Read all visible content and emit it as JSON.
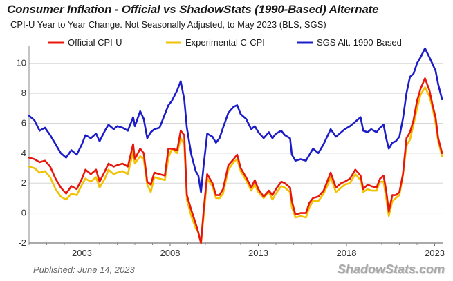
{
  "chart_data": {
    "type": "line",
    "title": "Consumer Inflation - Official vs ShadowStats (1990-Based) Alternate",
    "subtitle": "CPI-U Year to Year Change. Not Seasonally Adjusted, to May 2023  (BLS, SGS)",
    "xlabel": "",
    "ylabel": "",
    "xlim": [
      2000.0,
      2023.45
    ],
    "ylim": [
      -2,
      11
    ],
    "x_ticks": [
      2003,
      2008,
      2013,
      2018,
      2023
    ],
    "x_tick_labels": [
      "2003",
      "2008",
      "2013",
      "2018",
      "2023"
    ],
    "y_ticks": [
      -2,
      0,
      2,
      4,
      6,
      8,
      10
    ],
    "y_tick_labels": [
      "-2",
      "0",
      "2",
      "4",
      "6",
      "8",
      "10"
    ],
    "grid": true,
    "legend_placement": "top",
    "series": [
      {
        "name": "SGS  Alt. 1990-Based",
        "color": "#1c1cc8",
        "points": [
          [
            2000.0,
            6.5
          ],
          [
            2000.3,
            6.2
          ],
          [
            2000.6,
            5.5
          ],
          [
            2000.9,
            5.7
          ],
          [
            2001.2,
            5.2
          ],
          [
            2001.5,
            4.6
          ],
          [
            2001.8,
            4.0
          ],
          [
            2002.1,
            3.7
          ],
          [
            2002.4,
            4.2
          ],
          [
            2002.7,
            3.9
          ],
          [
            2003.0,
            4.6
          ],
          [
            2003.2,
            5.2
          ],
          [
            2003.5,
            5.0
          ],
          [
            2003.8,
            5.3
          ],
          [
            2004.0,
            4.8
          ],
          [
            2004.3,
            5.5
          ],
          [
            2004.5,
            5.9
          ],
          [
            2004.8,
            5.6
          ],
          [
            2005.0,
            5.8
          ],
          [
            2005.3,
            5.7
          ],
          [
            2005.6,
            5.5
          ],
          [
            2005.9,
            6.4
          ],
          [
            2006.0,
            5.8
          ],
          [
            2006.3,
            6.8
          ],
          [
            2006.5,
            6.3
          ],
          [
            2006.7,
            5.0
          ],
          [
            2006.9,
            5.4
          ],
          [
            2007.1,
            5.6
          ],
          [
            2007.4,
            5.7
          ],
          [
            2007.7,
            6.6
          ],
          [
            2007.9,
            7.2
          ],
          [
            2008.1,
            7.5
          ],
          [
            2008.4,
            8.2
          ],
          [
            2008.6,
            8.8
          ],
          [
            2008.8,
            7.6
          ],
          [
            2008.95,
            5.7
          ],
          [
            2009.2,
            3.9
          ],
          [
            2009.45,
            2.8
          ],
          [
            2009.6,
            2.5
          ],
          [
            2009.75,
            1.4
          ],
          [
            2009.9,
            3.2
          ],
          [
            2010.1,
            5.3
          ],
          [
            2010.4,
            5.1
          ],
          [
            2010.6,
            4.7
          ],
          [
            2010.8,
            5.0
          ],
          [
            2011.0,
            5.7
          ],
          [
            2011.3,
            6.7
          ],
          [
            2011.6,
            7.1
          ],
          [
            2011.8,
            7.2
          ],
          [
            2012.0,
            6.6
          ],
          [
            2012.3,
            6.3
          ],
          [
            2012.6,
            5.6
          ],
          [
            2012.8,
            5.8
          ],
          [
            2013.0,
            5.4
          ],
          [
            2013.3,
            5.0
          ],
          [
            2013.6,
            5.4
          ],
          [
            2013.8,
            5.0
          ],
          [
            2014.0,
            5.3
          ],
          [
            2014.3,
            5.5
          ],
          [
            2014.5,
            5.2
          ],
          [
            2014.8,
            5.0
          ],
          [
            2014.9,
            3.9
          ],
          [
            2015.1,
            3.5
          ],
          [
            2015.4,
            3.6
          ],
          [
            2015.7,
            3.5
          ],
          [
            2015.9,
            3.9
          ],
          [
            2016.1,
            4.3
          ],
          [
            2016.4,
            4.0
          ],
          [
            2016.7,
            4.6
          ],
          [
            2016.9,
            5.1
          ],
          [
            2017.1,
            5.6
          ],
          [
            2017.4,
            5.1
          ],
          [
            2017.7,
            5.4
          ],
          [
            2017.9,
            5.6
          ],
          [
            2018.2,
            5.8
          ],
          [
            2018.5,
            6.1
          ],
          [
            2018.8,
            6.4
          ],
          [
            2018.95,
            5.5
          ],
          [
            2019.2,
            5.4
          ],
          [
            2019.4,
            5.6
          ],
          [
            2019.7,
            5.4
          ],
          [
            2019.9,
            5.7
          ],
          [
            2020.1,
            5.9
          ],
          [
            2020.25,
            5.0
          ],
          [
            2020.4,
            4.3
          ],
          [
            2020.6,
            4.7
          ],
          [
            2020.8,
            4.8
          ],
          [
            2021.0,
            5.1
          ],
          [
            2021.2,
            6.3
          ],
          [
            2021.4,
            8.0
          ],
          [
            2021.6,
            9.1
          ],
          [
            2021.8,
            9.3
          ],
          [
            2022.0,
            10.0
          ],
          [
            2022.2,
            10.4
          ],
          [
            2022.45,
            11.0
          ],
          [
            2022.7,
            10.4
          ],
          [
            2022.9,
            9.9
          ],
          [
            2023.05,
            9.5
          ],
          [
            2023.2,
            8.6
          ],
          [
            2023.42,
            7.6
          ]
        ]
      },
      {
        "name": "Experimental C-CPI",
        "color": "#f2c200",
        "points": [
          [
            2000.0,
            3.1
          ],
          [
            2000.3,
            3.0
          ],
          [
            2000.6,
            2.7
          ],
          [
            2000.9,
            2.8
          ],
          [
            2001.2,
            2.4
          ],
          [
            2001.5,
            1.6
          ],
          [
            2001.8,
            1.1
          ],
          [
            2002.1,
            0.9
          ],
          [
            2002.4,
            1.3
          ],
          [
            2002.7,
            1.2
          ],
          [
            2003.0,
            1.9
          ],
          [
            2003.2,
            2.3
          ],
          [
            2003.5,
            2.1
          ],
          [
            2003.8,
            2.4
          ],
          [
            2004.0,
            1.7
          ],
          [
            2004.3,
            2.3
          ],
          [
            2004.5,
            2.9
          ],
          [
            2004.8,
            2.6
          ],
          [
            2005.0,
            2.7
          ],
          [
            2005.3,
            2.8
          ],
          [
            2005.6,
            2.6
          ],
          [
            2005.9,
            4.1
          ],
          [
            2006.0,
            3.3
          ],
          [
            2006.3,
            3.8
          ],
          [
            2006.5,
            3.6
          ],
          [
            2006.7,
            1.9
          ],
          [
            2006.9,
            1.4
          ],
          [
            2007.1,
            2.4
          ],
          [
            2007.4,
            2.3
          ],
          [
            2007.7,
            2.2
          ],
          [
            2007.9,
            3.7
          ],
          [
            2008.1,
            4.3
          ],
          [
            2008.4,
            4.0
          ],
          [
            2008.6,
            5.0
          ],
          [
            2008.8,
            4.6
          ],
          [
            2008.95,
            0.9
          ],
          [
            2009.2,
            -0.2
          ],
          [
            2009.45,
            -1.0
          ],
          [
            2009.6,
            -1.3
          ],
          [
            2009.75,
            -2.0
          ],
          [
            2009.9,
            -0.2
          ],
          [
            2010.1,
            2.3
          ],
          [
            2010.4,
            1.8
          ],
          [
            2010.6,
            1.0
          ],
          [
            2010.8,
            1.0
          ],
          [
            2011.0,
            1.3
          ],
          [
            2011.3,
            2.9
          ],
          [
            2011.6,
            3.4
          ],
          [
            2011.8,
            3.6
          ],
          [
            2012.0,
            2.8
          ],
          [
            2012.3,
            2.2
          ],
          [
            2012.6,
            1.5
          ],
          [
            2012.8,
            1.9
          ],
          [
            2013.0,
            1.4
          ],
          [
            2013.3,
            1.0
          ],
          [
            2013.6,
            1.4
          ],
          [
            2013.8,
            0.9
          ],
          [
            2014.0,
            1.3
          ],
          [
            2014.3,
            1.8
          ],
          [
            2014.5,
            1.7
          ],
          [
            2014.8,
            1.4
          ],
          [
            2014.9,
            0.4
          ],
          [
            2015.1,
            -0.3
          ],
          [
            2015.4,
            -0.2
          ],
          [
            2015.7,
            -0.3
          ],
          [
            2015.9,
            0.4
          ],
          [
            2016.1,
            0.8
          ],
          [
            2016.4,
            0.8
          ],
          [
            2016.7,
            1.3
          ],
          [
            2016.9,
            1.8
          ],
          [
            2017.1,
            2.4
          ],
          [
            2017.4,
            1.4
          ],
          [
            2017.7,
            1.7
          ],
          [
            2017.9,
            1.9
          ],
          [
            2018.2,
            2.0
          ],
          [
            2018.5,
            2.6
          ],
          [
            2018.8,
            2.2
          ],
          [
            2018.95,
            1.4
          ],
          [
            2019.2,
            1.6
          ],
          [
            2019.4,
            1.5
          ],
          [
            2019.7,
            1.5
          ],
          [
            2019.9,
            2.1
          ],
          [
            2020.1,
            2.1
          ],
          [
            2020.25,
            1.0
          ],
          [
            2020.4,
            -0.2
          ],
          [
            2020.6,
            0.8
          ],
          [
            2020.8,
            1.0
          ],
          [
            2021.0,
            1.2
          ],
          [
            2021.2,
            2.5
          ],
          [
            2021.4,
            4.5
          ],
          [
            2021.6,
            4.9
          ],
          [
            2021.8,
            5.9
          ],
          [
            2022.0,
            7.0
          ],
          [
            2022.2,
            7.9
          ],
          [
            2022.45,
            8.4
          ],
          [
            2022.7,
            7.8
          ],
          [
            2022.9,
            6.9
          ],
          [
            2023.05,
            6.0
          ],
          [
            2023.2,
            4.8
          ],
          [
            2023.42,
            3.8
          ]
        ]
      },
      {
        "name": "Official CPI-U",
        "color": "#e8170c",
        "points": [
          [
            2000.0,
            3.7
          ],
          [
            2000.3,
            3.6
          ],
          [
            2000.6,
            3.4
          ],
          [
            2000.9,
            3.5
          ],
          [
            2001.2,
            3.1
          ],
          [
            2001.5,
            2.3
          ],
          [
            2001.8,
            1.7
          ],
          [
            2002.1,
            1.3
          ],
          [
            2002.4,
            1.8
          ],
          [
            2002.7,
            1.6
          ],
          [
            2003.0,
            2.3
          ],
          [
            2003.2,
            2.9
          ],
          [
            2003.5,
            2.6
          ],
          [
            2003.8,
            2.9
          ],
          [
            2004.0,
            2.1
          ],
          [
            2004.3,
            2.8
          ],
          [
            2004.5,
            3.3
          ],
          [
            2004.8,
            3.1
          ],
          [
            2005.0,
            3.2
          ],
          [
            2005.3,
            3.3
          ],
          [
            2005.6,
            3.1
          ],
          [
            2005.9,
            4.6
          ],
          [
            2006.0,
            3.6
          ],
          [
            2006.3,
            4.3
          ],
          [
            2006.5,
            4.0
          ],
          [
            2006.7,
            2.1
          ],
          [
            2006.9,
            1.9
          ],
          [
            2007.1,
            2.7
          ],
          [
            2007.4,
            2.6
          ],
          [
            2007.7,
            2.5
          ],
          [
            2007.9,
            4.3
          ],
          [
            2008.1,
            4.3
          ],
          [
            2008.4,
            4.2
          ],
          [
            2008.6,
            5.5
          ],
          [
            2008.8,
            5.2
          ],
          [
            2008.95,
            1.2
          ],
          [
            2009.2,
            0.2
          ],
          [
            2009.45,
            -0.7
          ],
          [
            2009.6,
            -1.3
          ],
          [
            2009.75,
            -2.0
          ],
          [
            2009.9,
            0.2
          ],
          [
            2010.1,
            2.6
          ],
          [
            2010.4,
            2.0
          ],
          [
            2010.6,
            1.2
          ],
          [
            2010.8,
            1.2
          ],
          [
            2011.0,
            1.6
          ],
          [
            2011.3,
            3.2
          ],
          [
            2011.6,
            3.6
          ],
          [
            2011.8,
            3.9
          ],
          [
            2012.0,
            3.0
          ],
          [
            2012.3,
            2.4
          ],
          [
            2012.6,
            1.7
          ],
          [
            2012.8,
            2.2
          ],
          [
            2013.0,
            1.6
          ],
          [
            2013.3,
            1.1
          ],
          [
            2013.6,
            1.5
          ],
          [
            2013.8,
            1.2
          ],
          [
            2014.0,
            1.6
          ],
          [
            2014.3,
            2.1
          ],
          [
            2014.5,
            2.0
          ],
          [
            2014.8,
            1.7
          ],
          [
            2014.9,
            0.8
          ],
          [
            2015.1,
            -0.1
          ],
          [
            2015.4,
            0.0
          ],
          [
            2015.7,
            0.0
          ],
          [
            2015.9,
            0.7
          ],
          [
            2016.1,
            1.0
          ],
          [
            2016.4,
            1.1
          ],
          [
            2016.7,
            1.5
          ],
          [
            2016.9,
            2.1
          ],
          [
            2017.1,
            2.7
          ],
          [
            2017.4,
            1.7
          ],
          [
            2017.7,
            2.0
          ],
          [
            2017.9,
            2.1
          ],
          [
            2018.2,
            2.3
          ],
          [
            2018.5,
            2.9
          ],
          [
            2018.8,
            2.5
          ],
          [
            2018.95,
            1.6
          ],
          [
            2019.2,
            1.9
          ],
          [
            2019.4,
            1.8
          ],
          [
            2019.7,
            1.7
          ],
          [
            2019.9,
            2.3
          ],
          [
            2020.1,
            2.5
          ],
          [
            2020.25,
            1.5
          ],
          [
            2020.4,
            0.1
          ],
          [
            2020.6,
            1.2
          ],
          [
            2020.8,
            1.2
          ],
          [
            2021.0,
            1.4
          ],
          [
            2021.2,
            2.6
          ],
          [
            2021.4,
            5.0
          ],
          [
            2021.6,
            5.4
          ],
          [
            2021.8,
            6.2
          ],
          [
            2022.0,
            7.5
          ],
          [
            2022.2,
            8.3
          ],
          [
            2022.45,
            9.0
          ],
          [
            2022.7,
            8.2
          ],
          [
            2022.9,
            7.1
          ],
          [
            2023.05,
            6.4
          ],
          [
            2023.2,
            5.0
          ],
          [
            2023.42,
            4.0
          ]
        ]
      }
    ],
    "legend": [
      {
        "label": "Official CPI-U",
        "color": "#e8170c"
      },
      {
        "label": "Experimental C-CPI",
        "color": "#f2c200"
      },
      {
        "label": "SGS  Alt. 1990-Based",
        "color": "#1c1cc8"
      }
    ],
    "footer_note": "Published: June 14, 2023",
    "source_logo": "ShadowStats.com"
  }
}
